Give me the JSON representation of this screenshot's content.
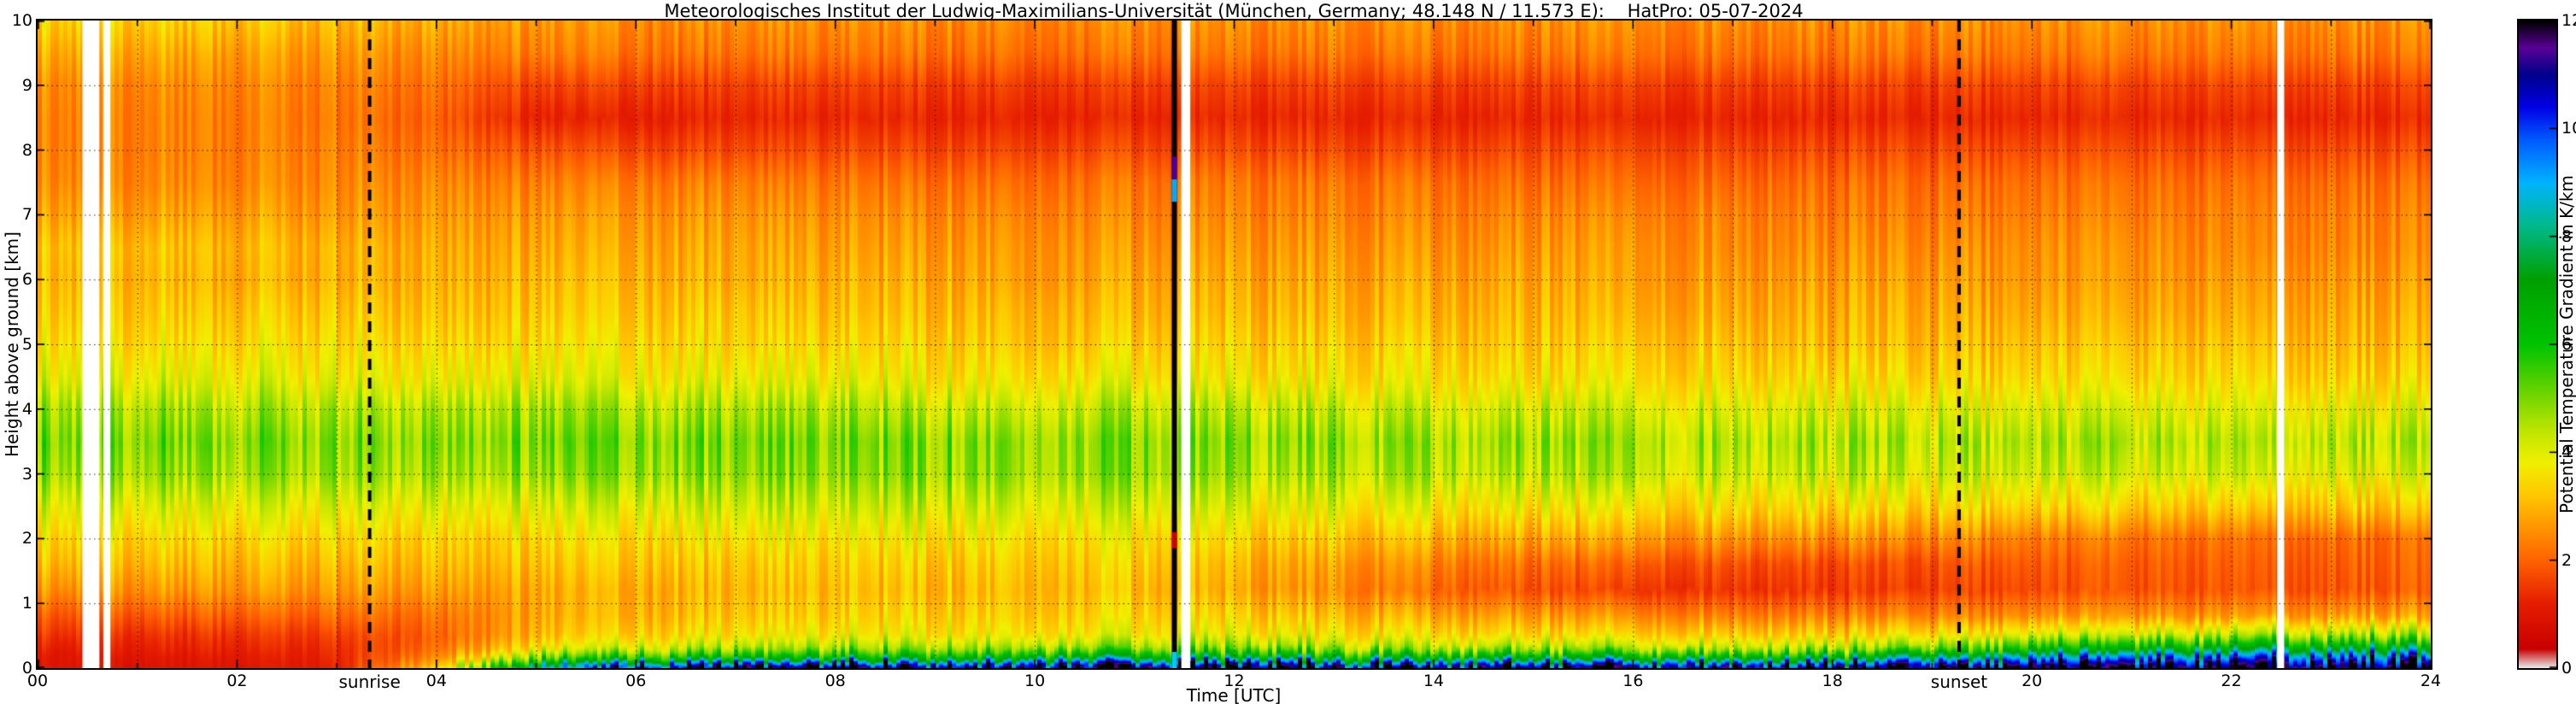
{
  "title": "Meteorologisches Institut der Ludwig-Maximilians-Universität (München, Germany; 48.148 N / 11.573 E):    HatPro: 05-07-2024",
  "axes": {
    "xlabel": "Time [UTC]",
    "ylabel": "Height above ground [km]"
  },
  "colorbar": {
    "label": "Potential Temperature Gradient in K/km",
    "min": 0,
    "max": 12,
    "ticks": [
      0,
      2,
      4,
      6,
      8,
      10,
      12
    ],
    "tick_labels": [
      "0",
      "2",
      "4",
      "6",
      "8",
      "10",
      "12"
    ]
  },
  "chart_data": {
    "type": "heatmap",
    "title": "Meteorologisches Institut der Ludwig-Maximilians-Universität (München, Germany; 48.148 N / 11.573 E):    HatPro: 05-07-2024",
    "xlabel": "Time [UTC]",
    "ylabel": "Height above ground [km]",
    "value_label": "Potential Temperature Gradient in K/km",
    "x_range": [
      0,
      24
    ],
    "y_range": [
      0,
      10
    ],
    "value_range": [
      0,
      12
    ],
    "grid": {
      "x_step_hours": 1,
      "y_step_km": 1,
      "style": "dotted"
    },
    "x_ticks": [
      0,
      2,
      4,
      6,
      8,
      10,
      12,
      14,
      16,
      18,
      20,
      22,
      24
    ],
    "x_tick_labels": [
      "00",
      "02",
      "04",
      "06",
      "08",
      "10",
      "12",
      "14",
      "16",
      "18",
      "20",
      "22",
      "24"
    ],
    "y_ticks": [
      0,
      1,
      2,
      3,
      4,
      5,
      6,
      7,
      8,
      9,
      10
    ],
    "y_tick_labels": [
      "0",
      "1",
      "2",
      "3",
      "4",
      "5",
      "6",
      "7",
      "8",
      "9",
      "10"
    ],
    "colormap_stops": [
      [
        0.0,
        "#e8e8e8"
      ],
      [
        0.35,
        "#c80000"
      ],
      [
        1.2,
        "#e61e00"
      ],
      [
        2.0,
        "#ff6400"
      ],
      [
        2.6,
        "#ff9600"
      ],
      [
        3.2,
        "#ffc800"
      ],
      [
        3.8,
        "#f0f000"
      ],
      [
        4.4,
        "#bee600"
      ],
      [
        5.0,
        "#78d700"
      ],
      [
        6.0,
        "#00c300"
      ],
      [
        7.2,
        "#00a000"
      ],
      [
        8.2,
        "#00b98c"
      ],
      [
        9.0,
        "#00b4ff"
      ],
      [
        9.8,
        "#005aff"
      ],
      [
        10.4,
        "#0000e6"
      ],
      [
        11.0,
        "#00008c"
      ],
      [
        11.5,
        "#5a0096"
      ],
      [
        12.0,
        "#000000"
      ]
    ],
    "heights_km": [
      0,
      0.15,
      0.3,
      0.5,
      0.8,
      1.2,
      1.6,
      2.0,
      2.5,
      3.0,
      3.5,
      4.0,
      4.5,
      5.0,
      5.5,
      6.0,
      6.5,
      7.0,
      7.5,
      8.0,
      8.5,
      9.0,
      9.5,
      10.0
    ],
    "times_utc": [
      0,
      1,
      2,
      3,
      4,
      5,
      6,
      7,
      8,
      9,
      10,
      11,
      12,
      13,
      14,
      15,
      16,
      17,
      18,
      19,
      20,
      21,
      22,
      23,
      24
    ],
    "values_K_per_km": [
      [
        1.0,
        1.0,
        1.2,
        1.5,
        1.9,
        2.6,
        3.1,
        3.5,
        4.1,
        4.8,
        5.1,
        4.7,
        4.0,
        3.6,
        3.3,
        3.1,
        3.2,
        2.8,
        2.5,
        2.4,
        2.4,
        2.5,
        2.9,
        3.4
      ],
      [
        0.9,
        1.0,
        1.2,
        1.4,
        1.9,
        2.6,
        3.1,
        3.5,
        4.1,
        4.8,
        5.1,
        4.7,
        4.0,
        3.6,
        3.3,
        3.1,
        3.2,
        2.8,
        2.5,
        2.4,
        2.4,
        2.5,
        2.9,
        3.4
      ],
      [
        1.0,
        1.1,
        1.3,
        1.5,
        2.0,
        2.7,
        3.1,
        3.5,
        4.1,
        4.8,
        5.1,
        4.6,
        4.0,
        3.6,
        3.3,
        3.0,
        3.1,
        2.8,
        2.5,
        2.4,
        2.4,
        2.5,
        2.8,
        3.3
      ],
      [
        1.2,
        1.3,
        1.4,
        1.6,
        2.1,
        2.7,
        3.1,
        3.5,
        4.1,
        4.8,
        5.0,
        4.6,
        3.9,
        3.6,
        3.3,
        3.0,
        3.0,
        2.7,
        2.5,
        2.4,
        2.3,
        2.4,
        2.7,
        3.1
      ],
      [
        3.5,
        2.6,
        2.2,
        2.0,
        2.2,
        2.7,
        3.1,
        3.4,
        4.0,
        4.7,
        5.0,
        4.6,
        3.9,
        3.5,
        3.2,
        3.0,
        2.9,
        2.7,
        2.5,
        2.2,
        2.0,
        2.2,
        2.5,
        2.9
      ],
      [
        8.0,
        5.0,
        3.6,
        3.0,
        2.8,
        2.8,
        3.1,
        3.4,
        4.0,
        4.7,
        5.0,
        4.6,
        3.9,
        3.5,
        3.2,
        3.0,
        2.8,
        2.6,
        2.3,
        1.8,
        1.2,
        1.6,
        2.3,
        2.6
      ],
      [
        11.0,
        6.0,
        4.2,
        3.4,
        3.0,
        2.9,
        3.2,
        3.5,
        4.1,
        4.8,
        5.0,
        4.5,
        3.8,
        3.5,
        3.2,
        3.0,
        2.8,
        2.6,
        2.3,
        1.7,
        1.2,
        1.6,
        2.2,
        2.5
      ],
      [
        12.0,
        6.5,
        4.5,
        3.6,
        3.2,
        3.0,
        3.2,
        3.6,
        4.2,
        4.8,
        5.0,
        4.5,
        3.8,
        3.4,
        3.2,
        2.9,
        2.8,
        2.6,
        2.3,
        1.7,
        1.3,
        1.6,
        2.2,
        2.5
      ],
      [
        12.0,
        6.5,
        4.6,
        3.7,
        3.3,
        3.1,
        3.3,
        3.6,
        4.2,
        4.8,
        5.0,
        4.5,
        3.8,
        3.4,
        3.1,
        2.9,
        2.7,
        2.5,
        2.2,
        1.7,
        1.3,
        1.6,
        2.2,
        2.5
      ],
      [
        12.0,
        6.8,
        4.8,
        3.8,
        3.4,
        3.1,
        3.3,
        3.7,
        4.3,
        4.9,
        5.0,
        4.4,
        3.7,
        3.4,
        3.1,
        2.9,
        2.7,
        2.5,
        2.2,
        1.7,
        1.3,
        1.6,
        2.2,
        2.5
      ],
      [
        12.0,
        7.0,
        4.8,
        3.8,
        3.4,
        3.2,
        3.4,
        3.7,
        4.3,
        4.9,
        5.0,
        4.4,
        3.7,
        3.3,
        3.1,
        2.8,
        2.7,
        2.5,
        2.2,
        1.7,
        1.3,
        1.6,
        2.2,
        2.5
      ],
      [
        12.0,
        7.0,
        4.8,
        3.8,
        3.4,
        3.1,
        3.3,
        3.6,
        4.2,
        4.8,
        4.9,
        4.4,
        3.7,
        3.3,
        3.0,
        2.8,
        2.6,
        2.4,
        2.2,
        1.7,
        1.3,
        1.6,
        2.2,
        2.5
      ],
      [
        12.0,
        7.0,
        4.8,
        3.8,
        3.3,
        2.8,
        3.0,
        3.4,
        4.0,
        4.6,
        4.8,
        4.3,
        3.6,
        3.3,
        3.0,
        2.8,
        2.6,
        2.4,
        2.2,
        1.7,
        1.3,
        1.6,
        2.2,
        2.5
      ],
      [
        12.0,
        7.0,
        4.7,
        3.7,
        3.1,
        2.5,
        2.7,
        3.2,
        3.9,
        4.5,
        4.8,
        4.3,
        3.6,
        3.3,
        3.0,
        2.8,
        2.6,
        2.4,
        2.2,
        1.7,
        1.3,
        1.6,
        2.2,
        2.5
      ],
      [
        12.0,
        7.0,
        4.6,
        3.6,
        2.9,
        2.1,
        2.4,
        3.0,
        3.8,
        4.5,
        4.7,
        4.2,
        3.6,
        3.3,
        3.0,
        2.8,
        2.6,
        2.4,
        2.2,
        1.7,
        1.3,
        1.6,
        2.2,
        2.5
      ],
      [
        12.0,
        7.0,
        4.6,
        3.5,
        2.7,
        1.8,
        2.1,
        2.8,
        3.7,
        4.4,
        4.7,
        4.2,
        3.5,
        3.2,
        3.0,
        2.8,
        2.6,
        2.4,
        2.1,
        1.7,
        1.3,
        1.6,
        2.2,
        2.5
      ],
      [
        12.0,
        7.0,
        4.5,
        3.4,
        2.5,
        1.5,
        1.9,
        2.7,
        3.6,
        4.4,
        4.6,
        4.1,
        3.5,
        3.2,
        2.9,
        2.7,
        2.6,
        2.4,
        2.1,
        1.7,
        1.3,
        1.6,
        2.2,
        2.5
      ],
      [
        12.0,
        7.0,
        4.5,
        3.4,
        2.4,
        1.5,
        1.8,
        2.6,
        3.6,
        4.3,
        4.6,
        4.1,
        3.5,
        3.2,
        2.9,
        2.7,
        2.5,
        2.4,
        2.1,
        1.7,
        1.3,
        1.6,
        2.2,
        2.5
      ],
      [
        12.0,
        7.2,
        4.6,
        3.4,
        2.4,
        1.5,
        1.7,
        2.5,
        3.5,
        4.3,
        4.6,
        4.1,
        3.5,
        3.1,
        2.9,
        2.7,
        2.5,
        2.3,
        2.1,
        1.7,
        1.3,
        1.6,
        2.2,
        2.5
      ],
      [
        12.0,
        8.0,
        5.0,
        3.6,
        2.4,
        1.6,
        1.8,
        2.5,
        3.5,
        4.2,
        4.5,
        4.0,
        3.4,
        3.1,
        2.9,
        2.7,
        2.5,
        2.3,
        2.1,
        1.7,
        1.3,
        1.6,
        2.2,
        2.5
      ],
      [
        12.0,
        9.0,
        6.0,
        4.0,
        2.5,
        1.7,
        1.9,
        2.3,
        3.4,
        4.2,
        4.5,
        4.0,
        3.4,
        3.1,
        2.8,
        2.6,
        2.5,
        2.3,
        2.1,
        1.7,
        1.3,
        1.6,
        2.2,
        2.5
      ],
      [
        12.0,
        9.5,
        6.5,
        4.2,
        2.6,
        1.8,
        1.9,
        2.2,
        3.3,
        4.1,
        4.5,
        4.0,
        3.4,
        3.1,
        2.8,
        2.6,
        2.5,
        2.3,
        2.1,
        1.7,
        1.3,
        1.6,
        2.2,
        2.5
      ],
      [
        12.0,
        10.0,
        7.0,
        4.5,
        2.6,
        1.8,
        1.9,
        2.1,
        3.2,
        4.1,
        4.4,
        3.9,
        3.4,
        3.1,
        2.8,
        2.6,
        2.4,
        2.3,
        2.1,
        1.7,
        1.3,
        1.6,
        2.2,
        2.5
      ],
      [
        12.0,
        10.0,
        7.2,
        4.6,
        2.7,
        1.8,
        1.9,
        2.1,
        3.2,
        4.0,
        4.4,
        3.9,
        3.3,
        3.0,
        2.8,
        2.6,
        2.4,
        2.3,
        2.1,
        1.7,
        1.3,
        1.6,
        2.2,
        2.5
      ],
      [
        12.0,
        10.0,
        7.2,
        4.6,
        2.7,
        1.9,
        2.0,
        2.1,
        3.2,
        4.0,
        4.4,
        3.9,
        3.3,
        3.0,
        2.8,
        2.6,
        2.4,
        2.3,
        2.1,
        1.7,
        1.3,
        1.6,
        2.2,
        2.5
      ]
    ],
    "annotations": {
      "sunrise": {
        "label": "sunrise",
        "time_utc": 3.33,
        "style": "dashed-vertical-black"
      },
      "sunset": {
        "label": "sunset",
        "time_utc": 19.27,
        "style": "dashed-vertical-black"
      },
      "missing_data_stripes_utc": [
        [
          0.45,
          0.62
        ],
        [
          0.66,
          0.73
        ],
        [
          11.47,
          11.56
        ],
        [
          22.46,
          22.53
        ]
      ],
      "black_column": {
        "time_utc": 11.4,
        "segments": [
          {
            "z0": 0.0,
            "z1": 0.25,
            "color": "#00c8ff"
          },
          {
            "z0": 1.85,
            "z1": 2.1,
            "color": "#d20000"
          },
          {
            "z0": 7.2,
            "z1": 7.55,
            "color": "#00aaff"
          },
          {
            "z0": 7.55,
            "z1": 7.9,
            "color": "#4600a0"
          }
        ]
      }
    },
    "legend_position": "right-colorbar"
  }
}
